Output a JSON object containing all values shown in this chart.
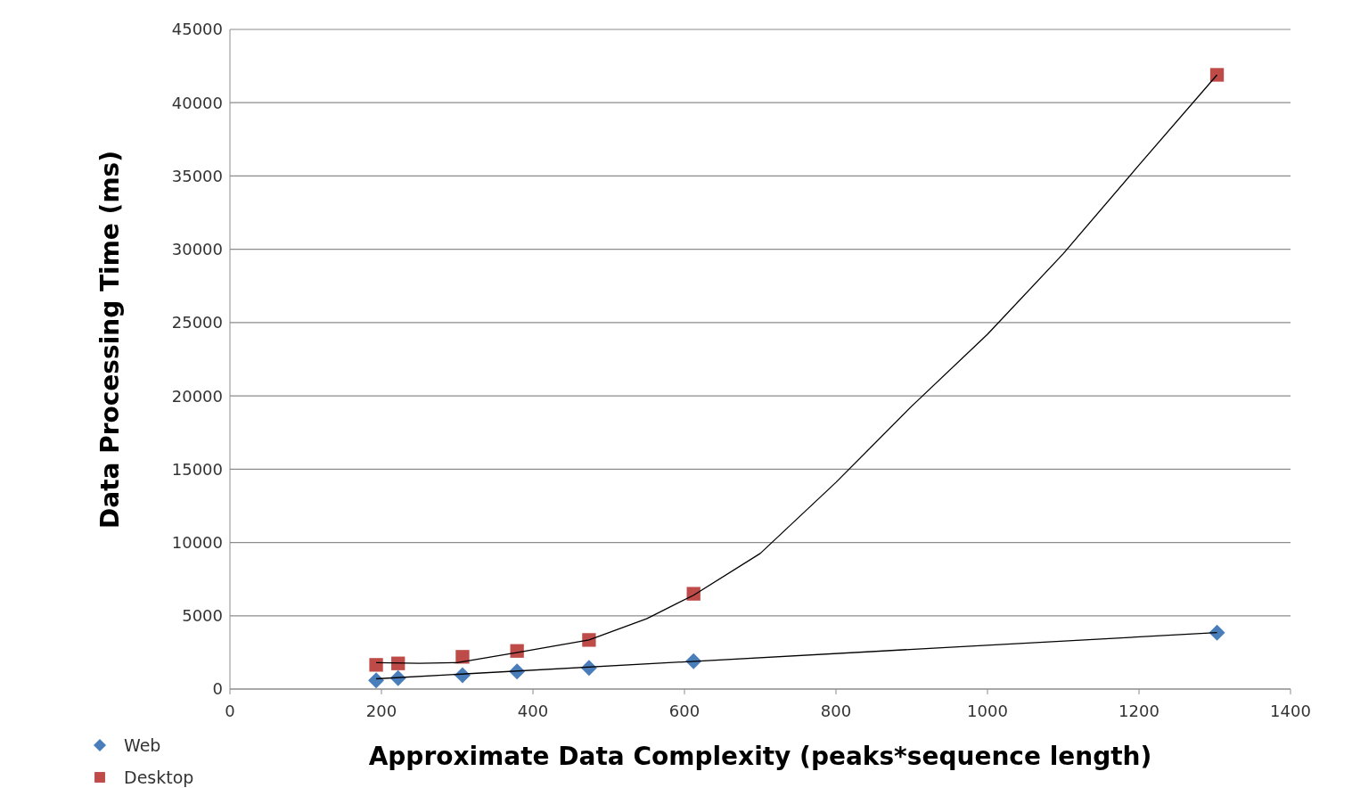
{
  "chart_data": {
    "type": "scatter",
    "xlabel": "Approximate Data Complexity (peaks*sequence length)",
    "ylabel": "Data Processing Time (ms)",
    "xlim": [
      0,
      1400
    ],
    "xticks": [
      0,
      200,
      400,
      600,
      800,
      1000,
      1200,
      1400
    ],
    "ylim": [
      0,
      45000
    ],
    "yticks": [
      0,
      5000,
      10000,
      15000,
      20000,
      25000,
      30000,
      35000,
      40000,
      45000
    ],
    "grid": "y",
    "legend": "bottom left",
    "series": [
      {
        "name": "Web",
        "marker": "diamond",
        "color": "#4a7ebb",
        "x": [
          193,
          222,
          307,
          379,
          474,
          612,
          1303
        ],
        "values": [
          600,
          750,
          950,
          1200,
          1450,
          1900,
          3850
        ]
      },
      {
        "name": "Desktop",
        "marker": "square",
        "color": "#be4b48",
        "x": [
          193,
          222,
          307,
          379,
          474,
          612,
          1303
        ],
        "values": [
          1650,
          1750,
          2200,
          2600,
          3350,
          6500,
          41900
        ]
      },
      {
        "type": "line",
        "marker": "none",
        "color": "#000000",
        "x": [
          193,
          1303
        ],
        "values": [
          700,
          3850
        ]
      },
      {
        "type": "line",
        "marker": "none",
        "color": "#000000",
        "x": [
          193,
          250,
          300,
          380,
          474,
          550,
          612,
          700,
          800,
          900,
          1000,
          1100,
          1200,
          1303
        ],
        "values": [
          1800,
          1750,
          1800,
          2500,
          3350,
          4800,
          6400,
          9250,
          14100,
          19300,
          24200,
          29700,
          35750,
          41900
        ]
      }
    ]
  }
}
